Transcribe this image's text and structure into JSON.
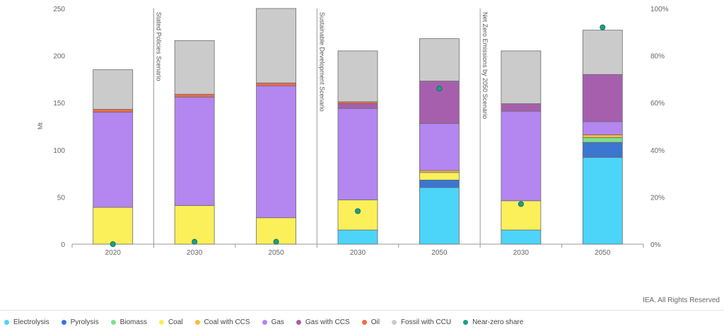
{
  "chart_data": {
    "type": "bar",
    "stacked": true,
    "ylabel": "Mt",
    "ylim": [
      0,
      250
    ],
    "yticks": [
      0,
      50,
      100,
      150,
      200,
      250
    ],
    "y2lim": [
      0,
      100
    ],
    "y2ticks": [
      "0%",
      "20%",
      "40%",
      "60%",
      "80%",
      "100%"
    ],
    "categories": [
      "2020",
      "2030",
      "2050",
      "2030",
      "2050",
      "2030",
      "2050"
    ],
    "scenarios": [
      {
        "label": "Stated Policies Scenario",
        "start_index": 1
      },
      {
        "label": "Sustainable Development Scenario",
        "start_index": 3
      },
      {
        "label": "Net Zero Emissions by 2050 Scenario",
        "start_index": 5
      }
    ],
    "series": [
      {
        "name": "Electrolysis",
        "color": "#4dd4f9",
        "values": [
          0,
          0,
          0,
          15,
          60,
          15,
          92
        ]
      },
      {
        "name": "Pyrolysis",
        "color": "#3b76d0",
        "values": [
          0,
          0,
          0,
          0,
          8,
          0,
          16
        ]
      },
      {
        "name": "Biomass",
        "color": "#7ee08a",
        "values": [
          0,
          0,
          0,
          0,
          0,
          0,
          5
        ]
      },
      {
        "name": "Coal",
        "color": "#fbf05a",
        "values": [
          39,
          41,
          28,
          32,
          8,
          31,
          0
        ]
      },
      {
        "name": "Coal with CCS",
        "color": "#f9bd3a",
        "values": [
          0,
          0,
          0,
          0,
          2,
          0,
          3
        ]
      },
      {
        "name": "Gas",
        "color": "#b386f0",
        "values": [
          101,
          115,
          140,
          97,
          50,
          95,
          14
        ]
      },
      {
        "name": "Gas with CCS",
        "color": "#a65fad",
        "values": [
          0,
          0,
          0,
          5,
          45,
          8,
          50
        ]
      },
      {
        "name": "Oil",
        "color": "#f16a47",
        "values": [
          3,
          3,
          3,
          2,
          0,
          0,
          0
        ]
      },
      {
        "name": "Fossil with CCU",
        "color": "#cbcbcb",
        "values": [
          42,
          57,
          80,
          54,
          45,
          56,
          47
        ]
      }
    ],
    "near_zero_share": {
      "name": "Near-zero share",
      "color": "#1d9e8a",
      "values": [
        0,
        1,
        1,
        14,
        66,
        17,
        92
      ]
    },
    "grid": false
  },
  "credit": "IEA. All Rights Reserved",
  "legend_items": [
    {
      "label": "Electrolysis",
      "color": "#4dd4f9"
    },
    {
      "label": "Pyrolysis",
      "color": "#3b76d0"
    },
    {
      "label": "Biomass",
      "color": "#7ee08a"
    },
    {
      "label": "Coal",
      "color": "#fbf05a"
    },
    {
      "label": "Coal with CCS",
      "color": "#f9bd3a"
    },
    {
      "label": "Gas",
      "color": "#b386f0"
    },
    {
      "label": "Gas with CCS",
      "color": "#a65fad"
    },
    {
      "label": "Oil",
      "color": "#f16a47"
    },
    {
      "label": "Fossil with CCU",
      "color": "#cbcbcb"
    },
    {
      "label": "Near-zero share",
      "color": "#1d9e8a"
    }
  ]
}
